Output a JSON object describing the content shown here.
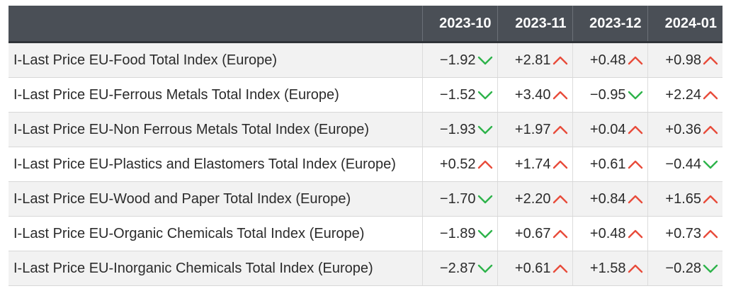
{
  "colors": {
    "up": "#e84b3a",
    "down": "#2db34a",
    "header_bg": "#4a4f56"
  },
  "table": {
    "columns": [
      "2023-10",
      "2023-11",
      "2023-12",
      "2024-01"
    ],
    "rows": [
      {
        "label": "I-Last Price EU-Food Total Index (Europe)",
        "cells": [
          {
            "value": "−1.92",
            "dir": "down"
          },
          {
            "value": "+2.81",
            "dir": "up"
          },
          {
            "value": "+0.48",
            "dir": "up"
          },
          {
            "value": "+0.98",
            "dir": "up"
          }
        ]
      },
      {
        "label": "I-Last Price EU-Ferrous Metals Total Index (Europe)",
        "cells": [
          {
            "value": "−1.52",
            "dir": "down"
          },
          {
            "value": "+3.40",
            "dir": "up"
          },
          {
            "value": "−0.95",
            "dir": "down"
          },
          {
            "value": "+2.24",
            "dir": "up"
          }
        ]
      },
      {
        "label": "I-Last Price EU-Non Ferrous Metals Total Index (Europe)",
        "cells": [
          {
            "value": "−1.93",
            "dir": "down"
          },
          {
            "value": "+1.97",
            "dir": "up"
          },
          {
            "value": "+0.04",
            "dir": "up"
          },
          {
            "value": "+0.36",
            "dir": "up"
          }
        ]
      },
      {
        "label": "I-Last Price EU-Plastics and Elastomers Total Index (Europe)",
        "cells": [
          {
            "value": "+0.52",
            "dir": "up"
          },
          {
            "value": "+1.74",
            "dir": "up"
          },
          {
            "value": "+0.61",
            "dir": "up"
          },
          {
            "value": "−0.44",
            "dir": "down"
          }
        ]
      },
      {
        "label": "I-Last Price EU-Wood and Paper Total Index (Europe)",
        "cells": [
          {
            "value": "−1.70",
            "dir": "down"
          },
          {
            "value": "+2.20",
            "dir": "up"
          },
          {
            "value": "+0.84",
            "dir": "up"
          },
          {
            "value": "+1.65",
            "dir": "up"
          }
        ]
      },
      {
        "label": "I-Last Price EU-Organic Chemicals Total Index (Europe)",
        "cells": [
          {
            "value": "−1.89",
            "dir": "down"
          },
          {
            "value": "+0.67",
            "dir": "up"
          },
          {
            "value": "+0.48",
            "dir": "up"
          },
          {
            "value": "+0.73",
            "dir": "up"
          }
        ]
      },
      {
        "label": "I-Last Price EU-Inorganic Chemicals Total Index (Europe)",
        "cells": [
          {
            "value": "−2.87",
            "dir": "down"
          },
          {
            "value": "+0.61",
            "dir": "up"
          },
          {
            "value": "+1.58",
            "dir": "up"
          },
          {
            "value": "−0.28",
            "dir": "down"
          }
        ]
      }
    ]
  }
}
